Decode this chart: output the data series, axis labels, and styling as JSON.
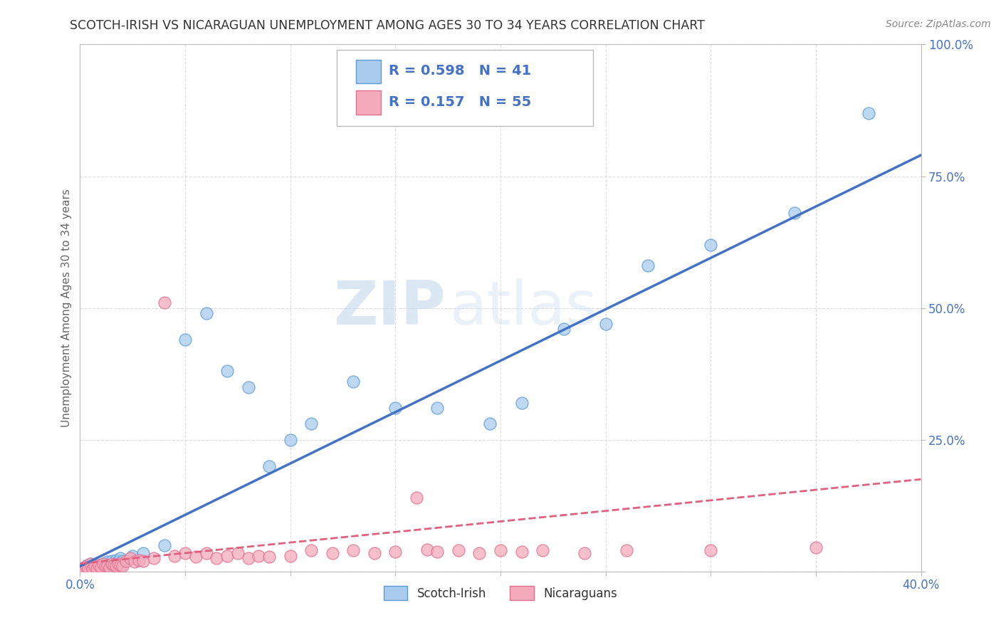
{
  "title": "SCOTCH-IRISH VS NICARAGUAN UNEMPLOYMENT AMONG AGES 30 TO 34 YEARS CORRELATION CHART",
  "source": "Source: ZipAtlas.com",
  "ylabel": "Unemployment Among Ages 30 to 34 years",
  "xlim": [
    0.0,
    0.4
  ],
  "ylim": [
    0.0,
    1.0
  ],
  "series1_name": "Scotch-Irish",
  "series1_R": 0.598,
  "series1_N": 41,
  "series1_color": "#A8CBEE",
  "series1_edge_color": "#5B9BD5",
  "series1_line_color": "#4472C4",
  "series2_name": "Nicaraguans",
  "series2_R": 0.157,
  "series2_N": 55,
  "series2_color": "#F4AABB",
  "series2_edge_color": "#E07090",
  "series2_line_color": "#E06080",
  "series1_x": [
    0.001,
    0.002,
    0.003,
    0.004,
    0.005,
    0.006,
    0.007,
    0.008,
    0.009,
    0.01,
    0.011,
    0.012,
    0.013,
    0.014,
    0.015,
    0.016,
    0.017,
    0.018,
    0.019,
    0.02,
    0.025,
    0.03,
    0.04,
    0.05,
    0.06,
    0.07,
    0.08,
    0.09,
    0.1,
    0.11,
    0.13,
    0.15,
    0.17,
    0.195,
    0.21,
    0.23,
    0.25,
    0.27,
    0.3,
    0.34,
    0.375
  ],
  "series1_y": [
    0.005,
    0.005,
    0.01,
    0.005,
    0.015,
    0.005,
    0.01,
    0.008,
    0.012,
    0.01,
    0.015,
    0.012,
    0.018,
    0.01,
    0.02,
    0.015,
    0.022,
    0.018,
    0.025,
    0.02,
    0.03,
    0.035,
    0.05,
    0.44,
    0.49,
    0.38,
    0.35,
    0.2,
    0.25,
    0.28,
    0.36,
    0.31,
    0.31,
    0.28,
    0.32,
    0.46,
    0.47,
    0.58,
    0.62,
    0.68,
    0.87
  ],
  "series2_x": [
    0.001,
    0.002,
    0.003,
    0.004,
    0.005,
    0.006,
    0.007,
    0.008,
    0.009,
    0.01,
    0.011,
    0.012,
    0.013,
    0.014,
    0.015,
    0.016,
    0.017,
    0.018,
    0.019,
    0.02,
    0.022,
    0.024,
    0.026,
    0.028,
    0.03,
    0.035,
    0.04,
    0.045,
    0.05,
    0.055,
    0.06,
    0.065,
    0.07,
    0.075,
    0.08,
    0.085,
    0.09,
    0.1,
    0.11,
    0.12,
    0.13,
    0.14,
    0.15,
    0.16,
    0.165,
    0.17,
    0.18,
    0.19,
    0.2,
    0.21,
    0.22,
    0.24,
    0.26,
    0.3,
    0.35
  ],
  "series2_y": [
    0.005,
    0.005,
    0.01,
    0.005,
    0.015,
    0.005,
    0.01,
    0.005,
    0.012,
    0.008,
    0.015,
    0.01,
    0.012,
    0.008,
    0.015,
    0.012,
    0.01,
    0.015,
    0.012,
    0.01,
    0.02,
    0.025,
    0.018,
    0.022,
    0.02,
    0.025,
    0.51,
    0.03,
    0.035,
    0.028,
    0.035,
    0.025,
    0.03,
    0.035,
    0.025,
    0.03,
    0.028,
    0.03,
    0.04,
    0.035,
    0.04,
    0.035,
    0.038,
    0.14,
    0.042,
    0.038,
    0.04,
    0.035,
    0.04,
    0.038,
    0.04,
    0.035,
    0.04,
    0.04,
    0.045
  ],
  "reg1_slope": 1.95,
  "reg1_intercept": 0.01,
  "reg2_slope": 0.4,
  "reg2_intercept": 0.015,
  "watermark_zip": "ZIP",
  "watermark_atlas": "atlas",
  "background_color": "#FFFFFF",
  "grid_color": "#DDDDDD",
  "tick_color": "#4472C4",
  "title_color": "#333333",
  "source_color": "#888888",
  "ylabel_color": "#666666"
}
